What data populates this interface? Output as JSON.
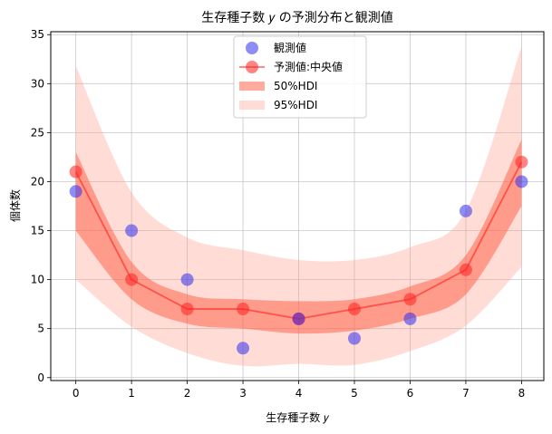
{
  "chart_data": {
    "type": "line",
    "title": "生存種子数 𝑦 の予測分布と観測値",
    "xlabel": "生存種子数 𝑦",
    "ylabel": "個体数",
    "xlim": [
      -0.45,
      8.4
    ],
    "ylim": [
      -0.3,
      35.3
    ],
    "xticks": [
      0,
      1,
      2,
      3,
      4,
      5,
      6,
      7,
      8
    ],
    "yticks": [
      0,
      5,
      10,
      15,
      20,
      25,
      30,
      35
    ],
    "grid": true,
    "legend_position": "top-center",
    "x": [
      0,
      1,
      2,
      3,
      4,
      5,
      6,
      7,
      8
    ],
    "series": [
      {
        "name": "観測値",
        "kind": "scatter",
        "color": "#5050ff",
        "values": [
          19,
          15,
          10,
          3,
          6,
          4,
          6,
          17,
          20
        ]
      },
      {
        "name": "予測値:中央値",
        "kind": "line-marker",
        "color": "#ff3030",
        "values": [
          21,
          10,
          7,
          7,
          6,
          7,
          8,
          11,
          22
        ]
      },
      {
        "name": "50%HDI",
        "kind": "band",
        "color": "#ff7f66",
        "lower": [
          15,
          8,
          5.5,
          5,
          4.5,
          4.8,
          6,
          8.5,
          17.5
        ],
        "upper": [
          23,
          11.8,
          8.5,
          8,
          7.8,
          8,
          9.3,
          12.5,
          24.3
        ]
      },
      {
        "name": "95%HDI",
        "kind": "band",
        "color": "#ffc0b4",
        "lower": [
          10,
          5.2,
          2.5,
          1.2,
          1.4,
          1.3,
          2.7,
          5.3,
          11.3
        ],
        "upper": [
          31.8,
          18.9,
          14.3,
          13,
          12,
          12,
          13.3,
          17,
          33.8
        ]
      }
    ]
  }
}
